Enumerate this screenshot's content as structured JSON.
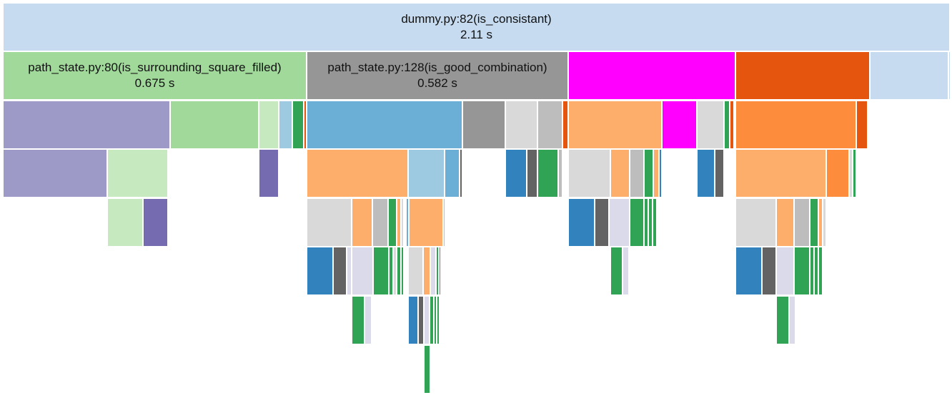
{
  "view": "icicle-profile",
  "colors": {
    "root": "#c6dbef",
    "lightgreen": "#a1d99b",
    "gray": "#969696",
    "magenta": "#ff00ff",
    "orange": "#e6550d",
    "purple": "#9e9ac8",
    "mintgreen": "#c7e9c0",
    "lightblue": "#9ecae1",
    "green": "#31a354",
    "blue": "#6baed6",
    "lightgray": "#d9d9d9",
    "silver": "#bdbdbd",
    "peach": "#fdae6b",
    "darkorange": "#fd8d3c",
    "midblue": "#3182bd",
    "darkgray": "#636363",
    "lavender": "#dadaeb",
    "violet": "#756bb1"
  },
  "nodes": [
    {
      "id": "root",
      "title": "dummy.py:82(is_consistant)",
      "time": "2.11 s",
      "color": "root"
    },
    {
      "id": "n1",
      "title": "path_state.py:80(is_surrounding_square_filled)",
      "time": "0.675 s",
      "color": "lightgreen"
    },
    {
      "id": "n2",
      "title": "path_state.py:128(is_good_combination)",
      "time": "0.582 s",
      "color": "gray"
    },
    {
      "id": "n3",
      "title": "",
      "time": "",
      "color": "magenta"
    },
    {
      "id": "n4",
      "title": "",
      "time": "",
      "color": "orange"
    },
    {
      "id": "n5",
      "title": "",
      "time": "",
      "color": "root"
    }
  ]
}
